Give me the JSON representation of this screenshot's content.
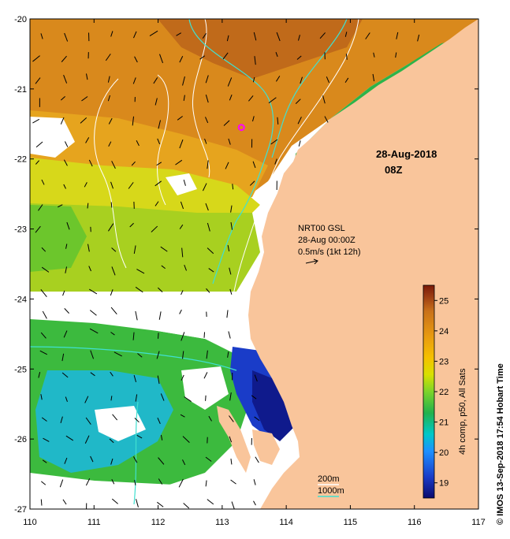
{
  "map": {
    "lon_range": [
      110,
      117
    ],
    "lat_range": [
      -27,
      -20
    ],
    "lon_ticks": [
      "110",
      "111",
      "112",
      "113",
      "114",
      "115",
      "116",
      "117"
    ],
    "lat_ticks": [
      "-20",
      "-21",
      "-22",
      "-23",
      "-24",
      "-25",
      "-26",
      "-27"
    ],
    "land_color": "#f9c59b",
    "marker": {
      "lon": 113.3,
      "lat": -21.55,
      "color": "#ff00ff"
    }
  },
  "date_label": "28-Aug-2018",
  "time_label": "08Z",
  "current_legend": {
    "line1": "NRT00 GSL",
    "line2": "28-Aug 00:00Z",
    "line3": "0.5m/s (1kt 12h)"
  },
  "depth_legend": {
    "label_200": "200m",
    "label_1000": "1000m",
    "color_200": "#ffffff",
    "color_1000": "#40e0d0"
  },
  "colorbar": {
    "ticks": [
      "19",
      "20",
      "21",
      "22",
      "23",
      "24",
      "25"
    ],
    "range": [
      18.5,
      25.5
    ],
    "label": "4h comp, p50, All Sats",
    "colors": [
      "#0a0a6e",
      "#1a3cc8",
      "#1e90ff",
      "#00c8c8",
      "#22b14c",
      "#7cd42a",
      "#d8e000",
      "#f5c000",
      "#e89a10",
      "#c8701a",
      "#9a3a12",
      "#7a1a08"
    ]
  },
  "credit": "© IMOS 13-Sep-2018 17:54 Hobart Time"
}
